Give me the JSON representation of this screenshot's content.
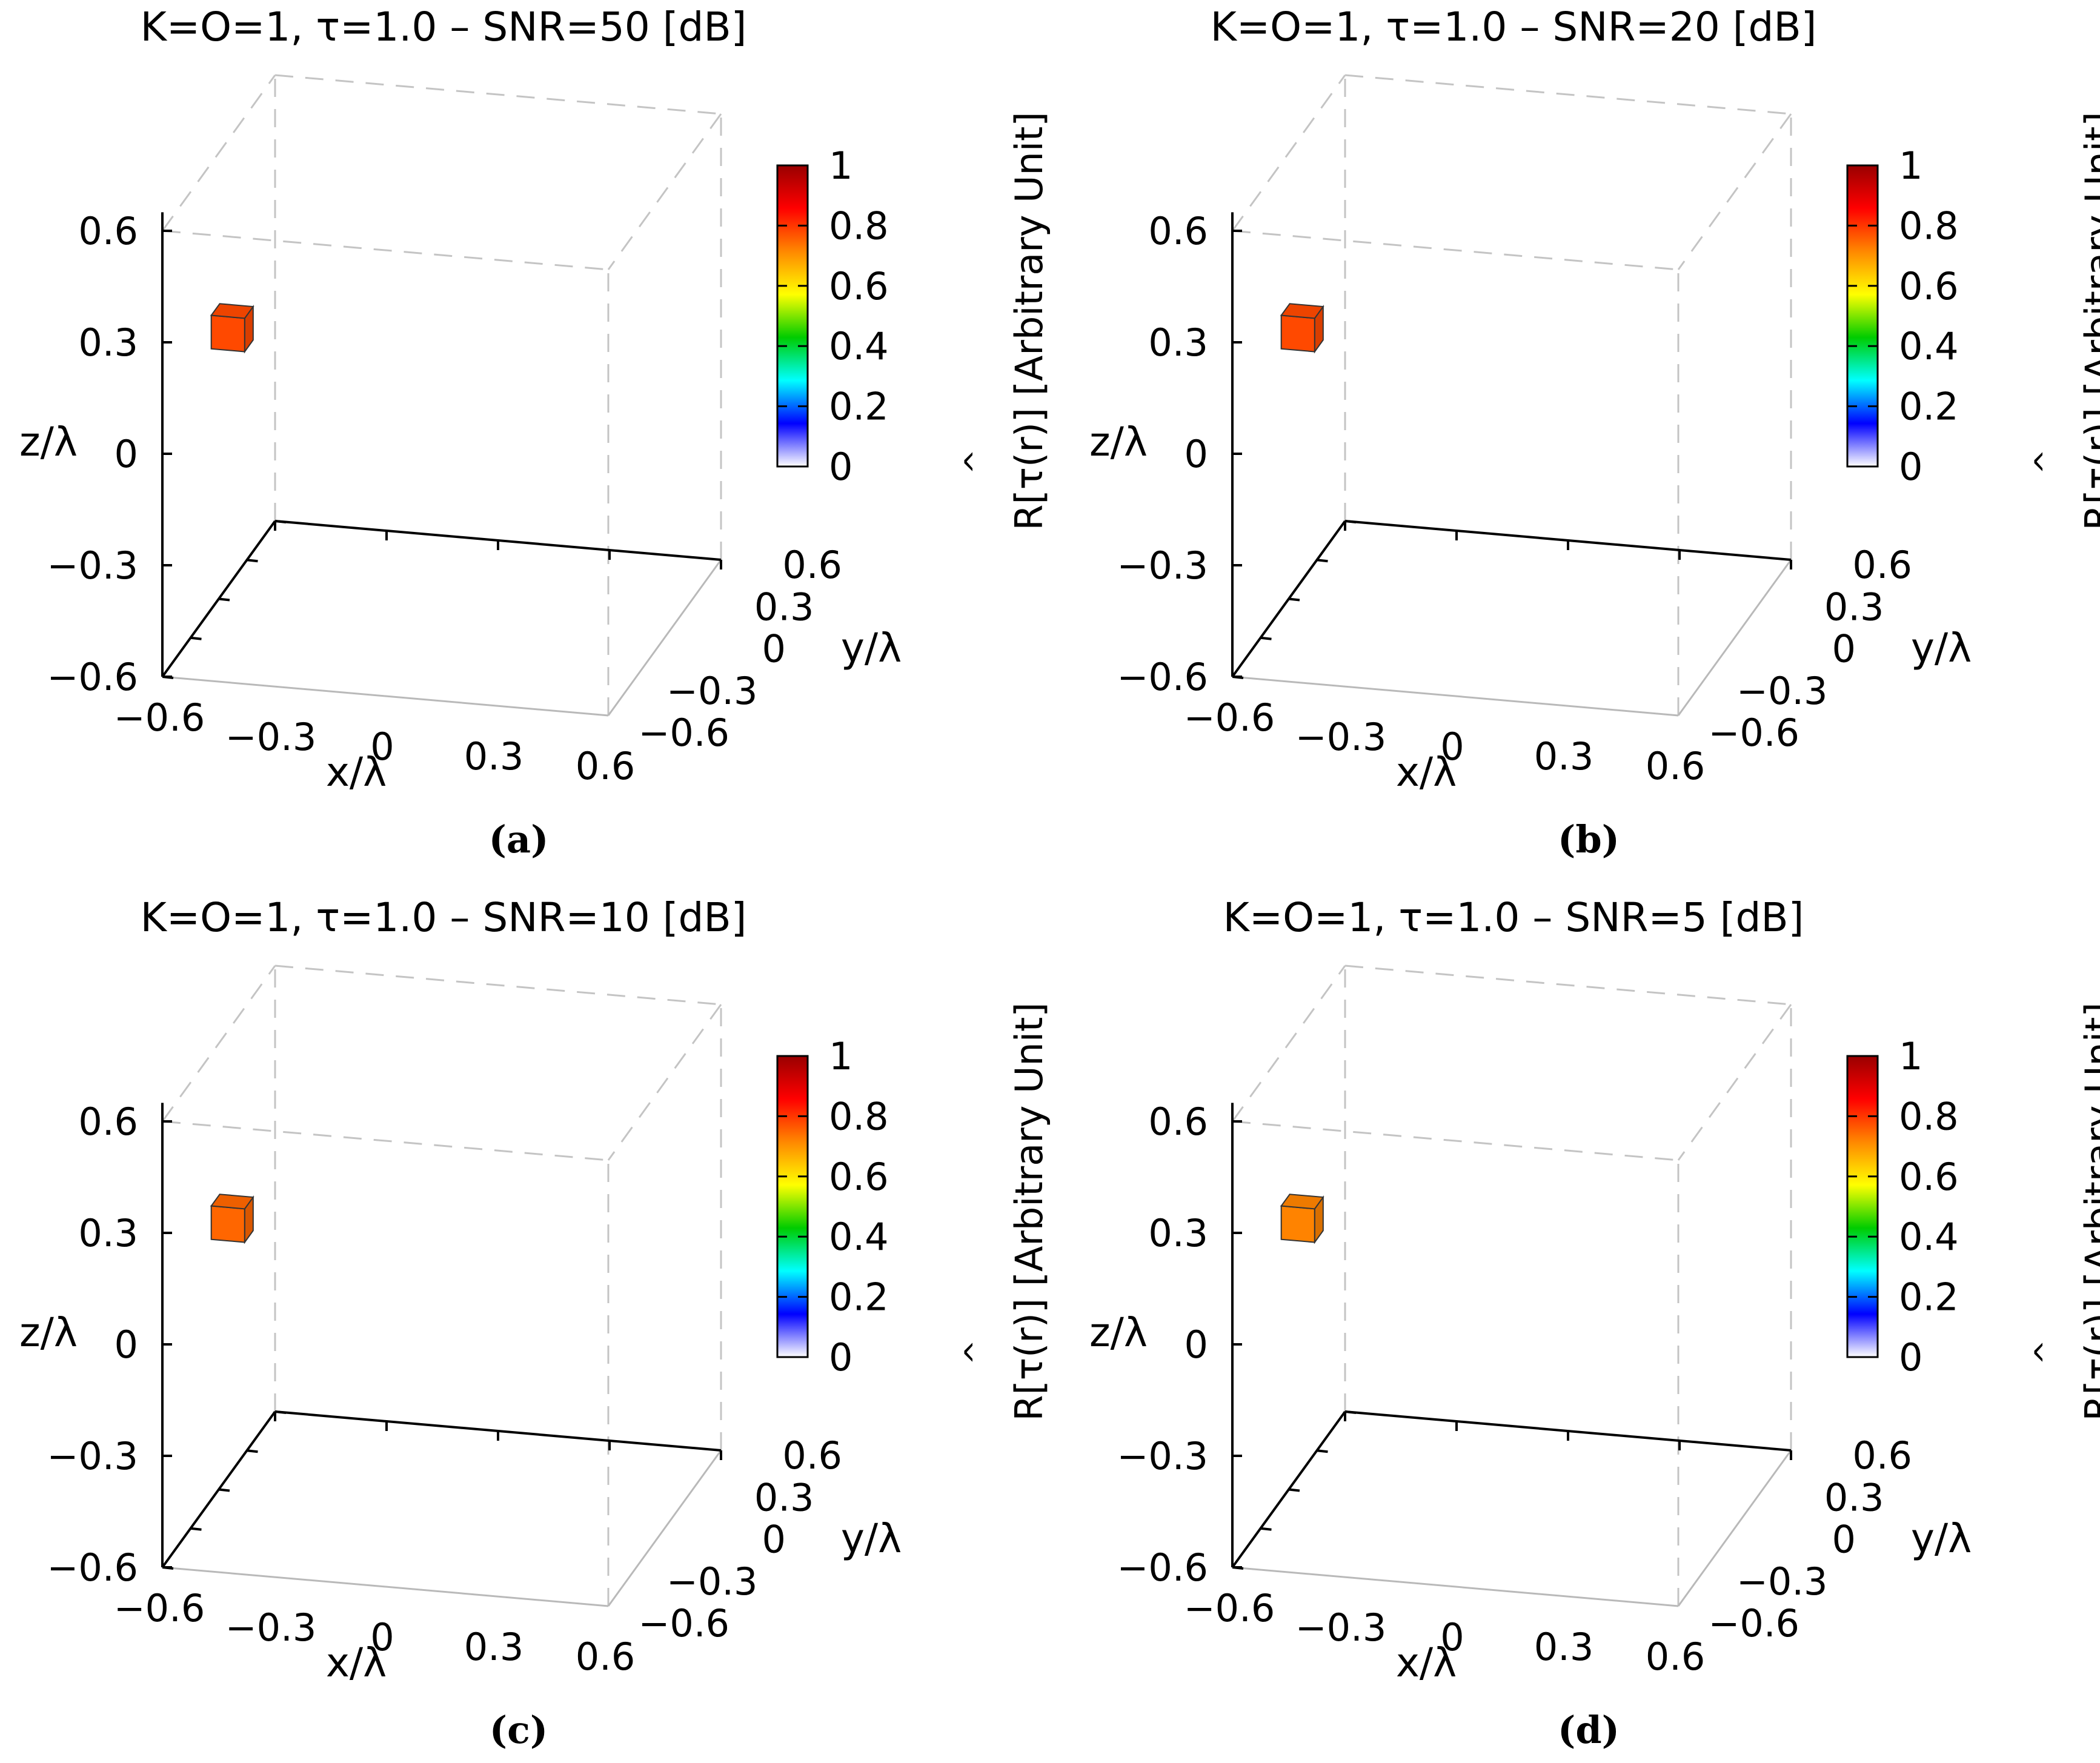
{
  "chart_data": [
    {
      "panel_label": "(a)",
      "type": "scatter3d",
      "title": "K=O=1, τ=1.0 – SNR=50 [dB]",
      "xlabel": "x/λ",
      "ylabel": "y/λ",
      "zlabel": "z/λ",
      "colorbar_label": "R[τ(r)] [Arbitrary Unit]",
      "ticks": [
        "−0.6",
        "−0.3",
        "0",
        "0.3",
        "0.6"
      ],
      "tick_values": [
        -0.6,
        -0.3,
        0,
        0.3,
        0.6
      ],
      "colorbar_ticks": [
        "0",
        "0.2",
        "0.4",
        "0.6",
        "0.8",
        "1"
      ],
      "points": [
        {
          "x": -0.45,
          "y": -0.45,
          "z": 0.3,
          "value": 0.78
        }
      ]
    },
    {
      "panel_label": "(b)",
      "type": "scatter3d",
      "title": "K=O=1, τ=1.0 – SNR=20 [dB]",
      "xlabel": "x/λ",
      "ylabel": "y/λ",
      "zlabel": "z/λ",
      "colorbar_label": "R[τ(r)] [Arbitrary Unit]",
      "ticks": [
        "−0.6",
        "−0.3",
        "0",
        "0.3",
        "0.6"
      ],
      "tick_values": [
        -0.6,
        -0.3,
        0,
        0.3,
        0.6
      ],
      "colorbar_ticks": [
        "0",
        "0.2",
        "0.4",
        "0.6",
        "0.8",
        "1"
      ],
      "points": [
        {
          "x": -0.45,
          "y": -0.45,
          "z": 0.3,
          "value": 0.78
        }
      ]
    },
    {
      "panel_label": "(c)",
      "type": "scatter3d",
      "title": "K=O=1, τ=1.0 – SNR=10 [dB]",
      "xlabel": "x/λ",
      "ylabel": "y/λ",
      "zlabel": "z/λ",
      "colorbar_label": "R[τ(r)] [Arbitrary Unit]",
      "ticks": [
        "−0.6",
        "−0.3",
        "0",
        "0.3",
        "0.6"
      ],
      "tick_values": [
        -0.6,
        -0.3,
        0,
        0.3,
        0.6
      ],
      "colorbar_ticks": [
        "0",
        "0.2",
        "0.4",
        "0.6",
        "0.8",
        "1"
      ],
      "points": [
        {
          "x": -0.45,
          "y": -0.45,
          "z": 0.3,
          "value": 0.75
        }
      ]
    },
    {
      "panel_label": "(d)",
      "type": "scatter3d",
      "title": "K=O=1, τ=1.0 – SNR=5 [dB]",
      "xlabel": "x/λ",
      "ylabel": "y/λ",
      "zlabel": "z/λ",
      "colorbar_label": "R[τ(r)] [Arbitrary Unit]",
      "ticks": [
        "−0.6",
        "−0.3",
        "0",
        "0.3",
        "0.6"
      ],
      "tick_values": [
        -0.6,
        -0.3,
        0,
        0.3,
        0.6
      ],
      "colorbar_ticks": [
        "0",
        "0.2",
        "0.4",
        "0.6",
        "0.8",
        "1"
      ],
      "points": [
        {
          "x": -0.45,
          "y": -0.45,
          "z": 0.3,
          "value": 0.72
        }
      ]
    }
  ],
  "colormap": [
    "#ffffff",
    "#0000ff",
    "#00ffff",
    "#00cc00",
    "#ffff00",
    "#ff8800",
    "#ff0000",
    "#990000"
  ]
}
